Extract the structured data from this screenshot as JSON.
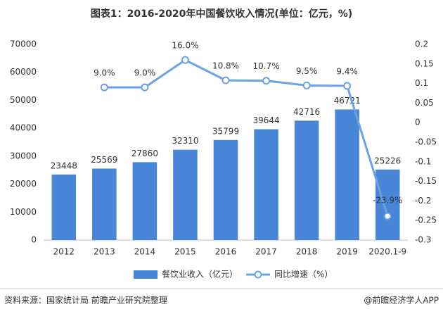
{
  "chart_data": {
    "type": "bar_line",
    "title": "图表1：2016-2020年中国餐饮收入情况(单位：亿元，%)",
    "categories": [
      "2012",
      "2013",
      "2014",
      "2015",
      "2016",
      "2017",
      "2018",
      "2019",
      "2020.1-9"
    ],
    "series": [
      {
        "name": "餐饮业收入（亿元）",
        "type": "bar",
        "color": "#4a86d8",
        "values": [
          23448,
          25569,
          27860,
          32310,
          35799,
          39644,
          42716,
          46721,
          25226
        ]
      },
      {
        "name": "同比增速（%）",
        "type": "line",
        "axis": "y2",
        "color": "#6aa2e6",
        "values": [
          null,
          0.09,
          0.09,
          0.16,
          0.108,
          0.107,
          0.095,
          0.094,
          -0.239
        ],
        "value_labels": [
          null,
          "9.0%",
          "9.0%",
          "16.0%",
          "10.8%",
          "10.7%",
          "9.5%",
          "9.4%",
          "-23.9%"
        ]
      }
    ],
    "ylim": [
      0,
      70000
    ],
    "yticks": [
      0,
      10000,
      20000,
      30000,
      40000,
      50000,
      60000,
      70000
    ],
    "y2lim": [
      -0.3,
      0.2
    ],
    "y2ticks": [
      -0.3,
      -0.25,
      -0.2,
      -0.15,
      -0.1,
      -0.05,
      0,
      0.05,
      0.1,
      0.15,
      0.2
    ],
    "grid": false
  },
  "footer": {
    "source": "资料来源：国家统计局   前瞻产业研究院整理",
    "brand": "@前瞻经济学人APP"
  }
}
